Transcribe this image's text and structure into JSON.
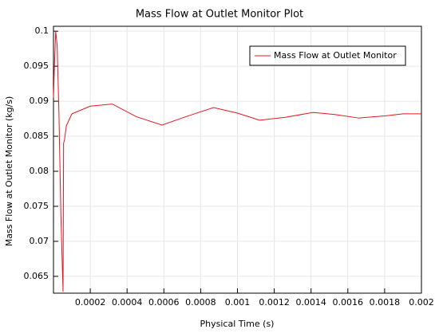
{
  "chart_data": {
    "type": "line",
    "title": "Mass Flow at Outlet Monitor Plot",
    "x_label": "Physical Time (s)",
    "y_label": "Mass Flow at Outlet Monitor (kg/s)",
    "x": [
      0,
      5e-06,
      1.2e-05,
      2e-05,
      3e-05,
      4e-05,
      5.2e-05,
      5.5e-05,
      6e-05,
      7e-05,
      0.0001,
      0.0002,
      0.00032,
      0.00045,
      0.00059,
      0.00072,
      0.00087,
      0.001,
      0.00112,
      0.00126,
      0.00141,
      0.00153,
      0.00166,
      0.0018,
      0.0019,
      0.002
    ],
    "series": [
      {
        "name": "Mass Flow at Outlet Monitor",
        "color": "#e8141c",
        "values": [
          0.0905,
          0.095,
          0.1,
          0.098,
          0.088,
          0.074,
          0.0628,
          0.084,
          0.0845,
          0.0865,
          0.0882,
          0.0893,
          0.0896,
          0.0878,
          0.0866,
          0.0878,
          0.0891,
          0.0883,
          0.0873,
          0.0877,
          0.0884,
          0.0881,
          0.0876,
          0.0879,
          0.0882,
          0.0882
        ]
      }
    ],
    "xlim": [
      0,
      0.002
    ],
    "ylim": [
      0.0626,
      0.1007
    ],
    "xticks": [
      0.0002,
      0.0004,
      0.0006,
      0.0008,
      0.001,
      0.0012,
      0.0014,
      0.0016,
      0.0018,
      0.002
    ],
    "yticks": [
      0.065,
      0.07,
      0.075,
      0.08,
      0.085,
      0.09,
      0.095,
      0.1
    ],
    "grid": true,
    "legend": "top-right"
  }
}
